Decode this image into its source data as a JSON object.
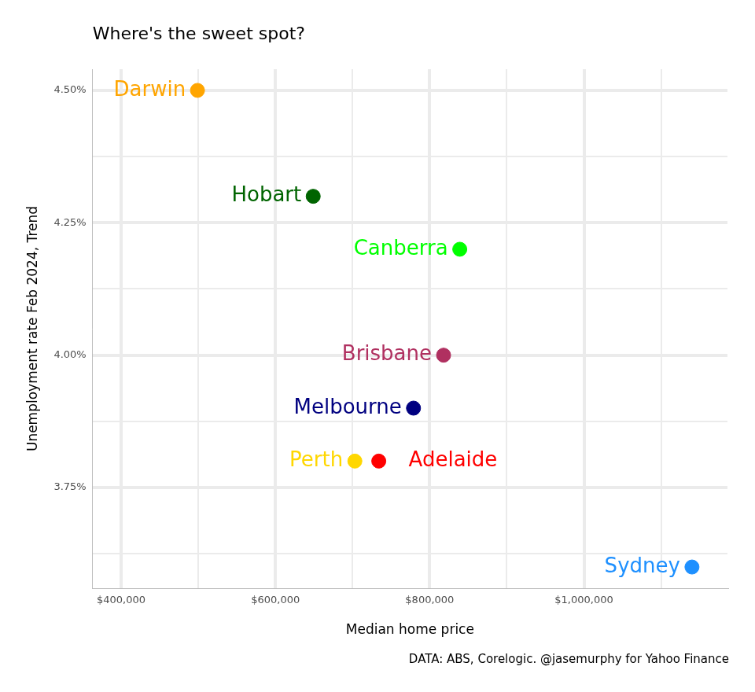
{
  "chart_data": {
    "type": "scatter",
    "title": "Where's the sweet spot?",
    "x_label": "Median home price",
    "y_label": "Unemployment rate Feb 2024, Trend",
    "caption": "DATA: ABS, Corelogic. @jasemurphy for Yahoo Finance",
    "point_labels": [
      "Darwin",
      "Hobart",
      "Canberra",
      "Brisbane",
      "Melbourne",
      "Perth",
      "Adelaide",
      "Sydney"
    ],
    "x": [
      499000,
      649000,
      839000,
      818000,
      779000,
      703000,
      734000,
      1140000
    ],
    "values": [
      4.5,
      4.3,
      4.2,
      4.0,
      3.9,
      3.8,
      3.8,
      3.6
    ],
    "colors": [
      "#ffa500",
      "#006400",
      "#00ff00",
      "#b03060",
      "#000080",
      "#ffd700",
      "#ff0000",
      "#1e90ff"
    ],
    "xlim": [
      363000,
      1186000
    ],
    "xticks": [
      {
        "value": 400000,
        "label": "$400,000"
      },
      {
        "value": 600000,
        "label": "$600,000"
      },
      {
        "value": 800000,
        "label": "$800,000"
      },
      {
        "value": 1000000,
        "label": "$1,000,000"
      }
    ],
    "ylim": [
      3.56,
      4.54
    ],
    "yticks": [
      {
        "value": 3.75,
        "label": "3.75%"
      },
      {
        "value": 4.0,
        "label": "4.00%"
      },
      {
        "value": 4.25,
        "label": "4.25%"
      },
      {
        "value": 4.5,
        "label": "4.50%"
      }
    ],
    "grid": true,
    "marker": "circle"
  }
}
